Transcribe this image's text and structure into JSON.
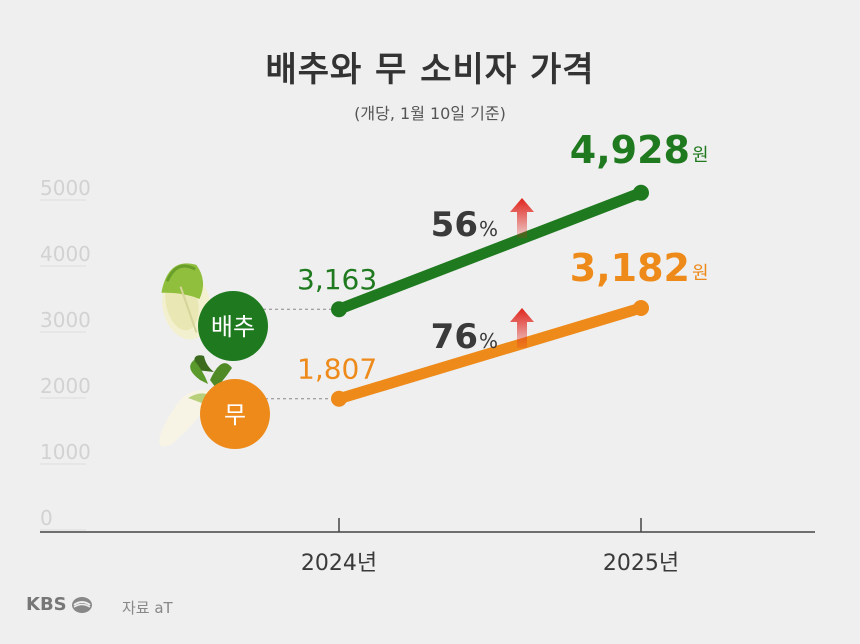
{
  "title": "배추와 무 소비자 가격",
  "subtitle": "(개당, 1월 10일 기준)",
  "footer": {
    "logo": "KBS",
    "source": "자료 aT"
  },
  "colors": {
    "cabbage": "#1f7a1f",
    "radish": "#ee8a1a",
    "arrow": "#e0231c",
    "axis": "#444444",
    "text": "#3a3a3a"
  },
  "annotations": {
    "cabbage": {
      "label": "배추",
      "icon": "napa-cabbage-icon",
      "start_value": "3,163",
      "end_value": "4,928",
      "unit": "원",
      "change": "56",
      "pct": "%"
    },
    "radish": {
      "label": "무",
      "icon": "radish-icon",
      "start_value": "1,807",
      "end_value": "3,182",
      "unit": "원",
      "change": "76",
      "pct": "%"
    }
  },
  "chart_data": {
    "type": "line",
    "title": "배추와 무 소비자 가격",
    "subtitle": "(개당, 1월 10일 기준)",
    "categories": [
      "2024년",
      "2025년"
    ],
    "ylim": [
      0,
      5000
    ],
    "yticks": [
      0,
      1000,
      2000,
      3000,
      4000,
      5000
    ],
    "series": [
      {
        "name": "배추",
        "values": [
          3163,
          4928
        ]
      },
      {
        "name": "무",
        "values": [
          1807,
          3182
        ]
      }
    ]
  }
}
